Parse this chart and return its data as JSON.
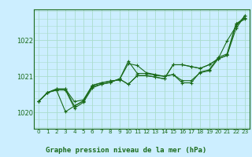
{
  "title": "Graphe pression niveau de la mer (hPa)",
  "bg_color": "#cceeff",
  "grid_color": "#aaddcc",
  "line_color": "#1a6b1a",
  "xlim": [
    -0.5,
    23.5
  ],
  "ylim": [
    1019.55,
    1022.85
  ],
  "yticks": [
    1020,
    1021,
    1022
  ],
  "xticks": [
    0,
    1,
    2,
    3,
    4,
    5,
    6,
    7,
    8,
    9,
    10,
    11,
    12,
    13,
    14,
    15,
    16,
    17,
    18,
    19,
    20,
    21,
    22,
    23
  ],
  "series": [
    [
      1020.3,
      1020.55,
      1020.65,
      1020.65,
      1020.3,
      1020.35,
      1020.75,
      1020.82,
      1020.87,
      1020.9,
      1021.35,
      1021.3,
      1021.1,
      1021.05,
      1021.0,
      1021.05,
      1020.88,
      1020.88,
      1021.1,
      1021.15,
      1021.48,
      1021.58,
      1022.45,
      1022.58
    ],
    [
      1020.3,
      1020.55,
      1020.65,
      1020.65,
      1020.18,
      1020.32,
      1020.75,
      1020.82,
      1020.87,
      1020.9,
      1021.42,
      1021.08,
      1021.08,
      1021.03,
      1021.0,
      1021.05,
      1020.82,
      1020.82,
      1021.12,
      1021.18,
      1021.52,
      1021.62,
      1022.45,
      1022.62
    ],
    [
      1020.3,
      1020.55,
      1020.62,
      1020.02,
      1020.18,
      1020.32,
      1020.72,
      1020.78,
      1020.83,
      1020.93,
      1020.78,
      1021.02,
      1021.02,
      1020.98,
      1020.93,
      1021.32,
      1021.32,
      1021.27,
      1021.22,
      1021.32,
      1021.48,
      1021.58,
      1022.32,
      1022.68
    ],
    [
      1020.3,
      1020.55,
      1020.62,
      1020.62,
      1020.12,
      1020.28,
      1020.68,
      1020.78,
      1020.83,
      1020.93,
      1020.78,
      1021.02,
      1021.02,
      1020.98,
      1020.93,
      1021.32,
      1021.32,
      1021.27,
      1021.22,
      1021.32,
      1021.48,
      1021.98,
      1022.38,
      1022.68
    ]
  ],
  "ylabel_fontsize": 6.0,
  "xlabel_fontsize": 5.2,
  "title_fontsize": 6.5
}
